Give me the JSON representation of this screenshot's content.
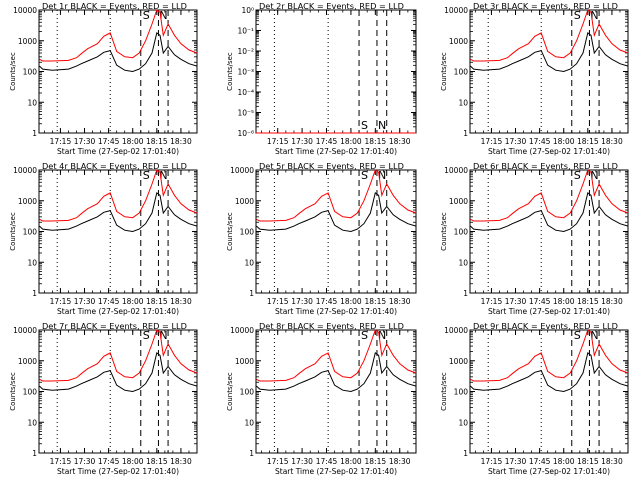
{
  "colors": {
    "background": "#ffffff",
    "axis": "#000000",
    "events": "#000000",
    "lld": "#ff0000"
  },
  "xlabel": "Start Time (27-Sep-02 17:01:40)",
  "ylabel": "Counts/sec",
  "x_ticks": [
    "17:15",
    "17:30",
    "17:45",
    "18:00",
    "18:15",
    "18:30"
  ],
  "log_y_ticks": [
    "1",
    "10",
    "100",
    "1000",
    "10000"
  ],
  "flat_y_ticks": [
    "10⁻⁶",
    "10⁻⁵",
    "10⁻⁴",
    "10⁻³",
    "10⁻²",
    "10⁻¹",
    "10⁰"
  ],
  "marker_s": "S",
  "marker_n": "N",
  "chart_data": [
    {
      "type": "line",
      "title": "Det 1r BLACK = Events, RED = LLD",
      "y_scale": "log",
      "ylim": [
        1,
        10000
      ],
      "xlim": [
        "17:01:40",
        "18:40"
      ],
      "series": [
        {
          "x": [
            "17:02",
            "17:04",
            "17:10",
            "17:20",
            "17:25",
            "17:28",
            "17:32",
            "17:38",
            "17:42",
            "17:46",
            "17:50",
            "17:55",
            "18:00",
            "18:04",
            "18:08",
            "18:12",
            "18:15",
            "18:17",
            "18:19",
            "18:22",
            "18:26",
            "18:30",
            "18:35",
            "18:40"
          ],
          "y": [
            150,
            120,
            110,
            120,
            150,
            180,
            220,
            300,
            420,
            480,
            160,
            110,
            100,
            120,
            180,
            400,
            1800,
            1500,
            400,
            650,
            350,
            250,
            180,
            150
          ]
        },
        {
          "x": [
            "17:02",
            "17:04",
            "17:10",
            "17:20",
            "17:25",
            "17:28",
            "17:32",
            "17:38",
            "17:42",
            "17:46",
            "17:50",
            "17:55",
            "18:00",
            "18:04",
            "18:08",
            "18:12",
            "18:15",
            "18:17",
            "18:19",
            "18:22",
            "18:26",
            "18:30",
            "18:35",
            "18:40"
          ],
          "y": [
            250,
            220,
            220,
            230,
            280,
            380,
            550,
            800,
            1400,
            1800,
            450,
            300,
            280,
            400,
            1000,
            3500,
            10000,
            8500,
            1500,
            3500,
            1500,
            800,
            500,
            400
          ]
        }
      ]
    },
    {
      "type": "line",
      "title": "Det 2r BLACK = Events, RED = LLD",
      "y_scale": "log",
      "ylim": [
        1e-06,
        1
      ],
      "xlim": [
        "17:01:40",
        "18:40"
      ],
      "series": [
        {
          "x": [
            "17:01:40",
            "18:40"
          ],
          "y": [
            0,
            0
          ]
        },
        {
          "x": [
            "17:01:40",
            "18:40"
          ],
          "y": [
            0,
            0
          ]
        }
      ]
    },
    {
      "type": "line",
      "title": "Det 3r BLACK = Events, RED = LLD",
      "y_scale": "log",
      "ylim": [
        1,
        10000
      ],
      "xlim": [
        "17:01:40",
        "18:40"
      ],
      "series": [
        {
          "x": [
            "17:02",
            "17:04",
            "17:10",
            "17:20",
            "17:25",
            "17:28",
            "17:32",
            "17:38",
            "17:42",
            "17:46",
            "17:50",
            "17:55",
            "18:00",
            "18:04",
            "18:08",
            "18:12",
            "18:15",
            "18:17",
            "18:19",
            "18:22",
            "18:26",
            "18:30",
            "18:35",
            "18:40"
          ],
          "y": [
            150,
            120,
            110,
            120,
            150,
            180,
            220,
            300,
            420,
            480,
            160,
            110,
            100,
            120,
            180,
            400,
            1800,
            1500,
            400,
            650,
            350,
            250,
            180,
            150
          ]
        },
        {
          "x": [
            "17:02",
            "17:04",
            "17:10",
            "17:20",
            "17:25",
            "17:28",
            "17:32",
            "17:38",
            "17:42",
            "17:46",
            "17:50",
            "17:55",
            "18:00",
            "18:04",
            "18:08",
            "18:12",
            "18:15",
            "18:17",
            "18:19",
            "18:22",
            "18:26",
            "18:30",
            "18:35",
            "18:40"
          ],
          "y": [
            250,
            220,
            220,
            230,
            280,
            380,
            550,
            800,
            1400,
            1800,
            450,
            300,
            280,
            400,
            1000,
            3500,
            10000,
            8500,
            1500,
            3500,
            1500,
            800,
            500,
            400
          ]
        }
      ]
    },
    {
      "type": "line",
      "title": "Det 4r BLACK = Events, RED = LLD",
      "y_scale": "log",
      "ylim": [
        1,
        10000
      ],
      "xlim": [
        "17:01:40",
        "18:40"
      ],
      "series": [
        {
          "x": [
            "17:02",
            "17:04",
            "17:10",
            "17:20",
            "17:25",
            "17:28",
            "17:32",
            "17:38",
            "17:42",
            "17:46",
            "17:50",
            "17:55",
            "18:00",
            "18:04",
            "18:08",
            "18:12",
            "18:15",
            "18:17",
            "18:19",
            "18:22",
            "18:26",
            "18:30",
            "18:35",
            "18:40"
          ],
          "y": [
            150,
            120,
            110,
            120,
            150,
            180,
            220,
            300,
            420,
            480,
            160,
            110,
            100,
            120,
            180,
            400,
            1800,
            1500,
            400,
            650,
            350,
            250,
            180,
            150
          ]
        },
        {
          "x": [
            "17:02",
            "17:04",
            "17:10",
            "17:20",
            "17:25",
            "17:28",
            "17:32",
            "17:38",
            "17:42",
            "17:46",
            "17:50",
            "17:55",
            "18:00",
            "18:04",
            "18:08",
            "18:12",
            "18:15",
            "18:17",
            "18:19",
            "18:22",
            "18:26",
            "18:30",
            "18:35",
            "18:40"
          ],
          "y": [
            250,
            220,
            220,
            230,
            280,
            380,
            550,
            800,
            1400,
            1800,
            450,
            300,
            280,
            400,
            1000,
            3500,
            10000,
            8500,
            1500,
            3500,
            1500,
            800,
            500,
            400
          ]
        }
      ]
    },
    {
      "type": "line",
      "title": "Det 5r BLACK = Events, RED = LLD",
      "y_scale": "log",
      "ylim": [
        1,
        10000
      ],
      "xlim": [
        "17:01:40",
        "18:40"
      ],
      "series": [
        {
          "x": [
            "17:02",
            "17:04",
            "17:10",
            "17:20",
            "17:25",
            "17:28",
            "17:32",
            "17:38",
            "17:42",
            "17:46",
            "17:50",
            "17:55",
            "18:00",
            "18:04",
            "18:08",
            "18:12",
            "18:15",
            "18:17",
            "18:19",
            "18:22",
            "18:26",
            "18:30",
            "18:35",
            "18:40"
          ],
          "y": [
            150,
            120,
            110,
            120,
            150,
            180,
            220,
            300,
            420,
            480,
            160,
            110,
            100,
            120,
            180,
            400,
            1800,
            1500,
            400,
            650,
            350,
            250,
            180,
            150
          ]
        },
        {
          "x": [
            "17:02",
            "17:04",
            "17:10",
            "17:20",
            "17:25",
            "17:28",
            "17:32",
            "17:38",
            "17:42",
            "17:46",
            "17:50",
            "17:55",
            "18:00",
            "18:04",
            "18:08",
            "18:12",
            "18:15",
            "18:17",
            "18:19",
            "18:22",
            "18:26",
            "18:30",
            "18:35",
            "18:40"
          ],
          "y": [
            250,
            220,
            220,
            230,
            280,
            380,
            550,
            800,
            1400,
            1800,
            450,
            300,
            280,
            400,
            1000,
            3500,
            10000,
            8500,
            1500,
            3500,
            1500,
            800,
            500,
            400
          ]
        }
      ]
    },
    {
      "type": "line",
      "title": "Det 6r BLACK = Events, RED = LLD",
      "y_scale": "log",
      "ylim": [
        1,
        10000
      ],
      "xlim": [
        "17:01:40",
        "18:40"
      ],
      "series": [
        {
          "x": [
            "17:02",
            "17:04",
            "17:10",
            "17:20",
            "17:25",
            "17:28",
            "17:32",
            "17:38",
            "17:42",
            "17:46",
            "17:50",
            "17:55",
            "18:00",
            "18:04",
            "18:08",
            "18:12",
            "18:15",
            "18:17",
            "18:19",
            "18:22",
            "18:26",
            "18:30",
            "18:35",
            "18:40"
          ],
          "y": [
            150,
            120,
            110,
            120,
            150,
            180,
            220,
            300,
            420,
            480,
            160,
            110,
            100,
            120,
            180,
            400,
            1800,
            1500,
            400,
            650,
            350,
            250,
            180,
            150
          ]
        },
        {
          "x": [
            "17:02",
            "17:04",
            "17:10",
            "17:20",
            "17:25",
            "17:28",
            "17:32",
            "17:38",
            "17:42",
            "17:46",
            "17:50",
            "17:55",
            "18:00",
            "18:04",
            "18:08",
            "18:12",
            "18:15",
            "18:17",
            "18:19",
            "18:22",
            "18:26",
            "18:30",
            "18:35",
            "18:40"
          ],
          "y": [
            250,
            220,
            220,
            230,
            280,
            380,
            550,
            800,
            1400,
            1800,
            450,
            300,
            280,
            400,
            1000,
            3500,
            10000,
            8500,
            1500,
            3500,
            1500,
            800,
            500,
            400
          ]
        }
      ]
    },
    {
      "type": "line",
      "title": "Det 7r BLACK = Events, RED = LLD",
      "y_scale": "log",
      "ylim": [
        1,
        10000
      ],
      "xlim": [
        "17:01:40",
        "18:40"
      ],
      "series": [
        {
          "x": [
            "17:02",
            "17:04",
            "17:10",
            "17:20",
            "17:25",
            "17:28",
            "17:32",
            "17:38",
            "17:42",
            "17:46",
            "17:50",
            "17:55",
            "18:00",
            "18:04",
            "18:08",
            "18:12",
            "18:15",
            "18:17",
            "18:19",
            "18:22",
            "18:26",
            "18:30",
            "18:35",
            "18:40"
          ],
          "y": [
            150,
            120,
            110,
            120,
            150,
            180,
            220,
            300,
            420,
            480,
            160,
            110,
            100,
            120,
            180,
            400,
            1800,
            1500,
            400,
            650,
            350,
            250,
            180,
            150
          ]
        },
        {
          "x": [
            "17:02",
            "17:04",
            "17:10",
            "17:20",
            "17:25",
            "17:28",
            "17:32",
            "17:38",
            "17:42",
            "17:46",
            "17:50",
            "17:55",
            "18:00",
            "18:04",
            "18:08",
            "18:12",
            "18:15",
            "18:17",
            "18:19",
            "18:22",
            "18:26",
            "18:30",
            "18:35",
            "18:40"
          ],
          "y": [
            250,
            220,
            220,
            230,
            280,
            380,
            550,
            800,
            1400,
            1800,
            450,
            300,
            280,
            400,
            1000,
            3500,
            10000,
            8500,
            1500,
            3500,
            1500,
            800,
            500,
            400
          ]
        }
      ]
    },
    {
      "type": "line",
      "title": "Det 8r BLACK = Events, RED = LLD",
      "y_scale": "log",
      "ylim": [
        1,
        10000
      ],
      "xlim": [
        "17:01:40",
        "18:40"
      ],
      "series": [
        {
          "x": [
            "17:02",
            "17:04",
            "17:10",
            "17:20",
            "17:25",
            "17:28",
            "17:32",
            "17:38",
            "17:42",
            "17:46",
            "17:50",
            "17:55",
            "18:00",
            "18:04",
            "18:08",
            "18:12",
            "18:15",
            "18:17",
            "18:19",
            "18:22",
            "18:26",
            "18:30",
            "18:35",
            "18:40"
          ],
          "y": [
            150,
            120,
            110,
            120,
            150,
            180,
            220,
            300,
            420,
            480,
            160,
            110,
            100,
            120,
            180,
            400,
            1800,
            1500,
            400,
            650,
            350,
            250,
            180,
            150
          ]
        },
        {
          "x": [
            "17:02",
            "17:04",
            "17:10",
            "17:20",
            "17:25",
            "17:28",
            "17:32",
            "17:38",
            "17:42",
            "17:46",
            "17:50",
            "17:55",
            "18:00",
            "18:04",
            "18:08",
            "18:12",
            "18:15",
            "18:17",
            "18:19",
            "18:22",
            "18:26",
            "18:30",
            "18:35",
            "18:40"
          ],
          "y": [
            250,
            220,
            220,
            230,
            280,
            380,
            550,
            800,
            1400,
            1800,
            450,
            300,
            280,
            400,
            1000,
            3500,
            10000,
            8500,
            1500,
            3500,
            1500,
            800,
            500,
            400
          ]
        }
      ]
    },
    {
      "type": "line",
      "title": "Det 9r BLACK = Events, RED = LLD",
      "y_scale": "log",
      "ylim": [
        1,
        10000
      ],
      "xlim": [
        "17:01:40",
        "18:40"
      ],
      "series": [
        {
          "x": [
            "17:02",
            "17:04",
            "17:10",
            "17:20",
            "17:25",
            "17:28",
            "17:32",
            "17:38",
            "17:42",
            "17:46",
            "17:50",
            "17:55",
            "18:00",
            "18:04",
            "18:08",
            "18:12",
            "18:15",
            "18:17",
            "18:19",
            "18:22",
            "18:26",
            "18:30",
            "18:35",
            "18:40"
          ],
          "y": [
            150,
            120,
            110,
            120,
            150,
            180,
            220,
            300,
            420,
            480,
            160,
            110,
            100,
            120,
            180,
            400,
            1800,
            1500,
            400,
            650,
            350,
            250,
            180,
            150
          ]
        },
        {
          "x": [
            "17:02",
            "17:04",
            "17:10",
            "17:20",
            "17:25",
            "17:28",
            "17:32",
            "17:38",
            "17:42",
            "17:46",
            "17:50",
            "17:55",
            "18:00",
            "18:04",
            "18:08",
            "18:12",
            "18:15",
            "18:17",
            "18:19",
            "18:22",
            "18:26",
            "18:30",
            "18:35",
            "18:40"
          ],
          "y": [
            250,
            220,
            220,
            230,
            280,
            380,
            550,
            800,
            1400,
            1800,
            450,
            300,
            280,
            400,
            1000,
            3500,
            10000,
            8500,
            1500,
            3500,
            1500,
            800,
            500,
            400
          ]
        }
      ]
    }
  ]
}
